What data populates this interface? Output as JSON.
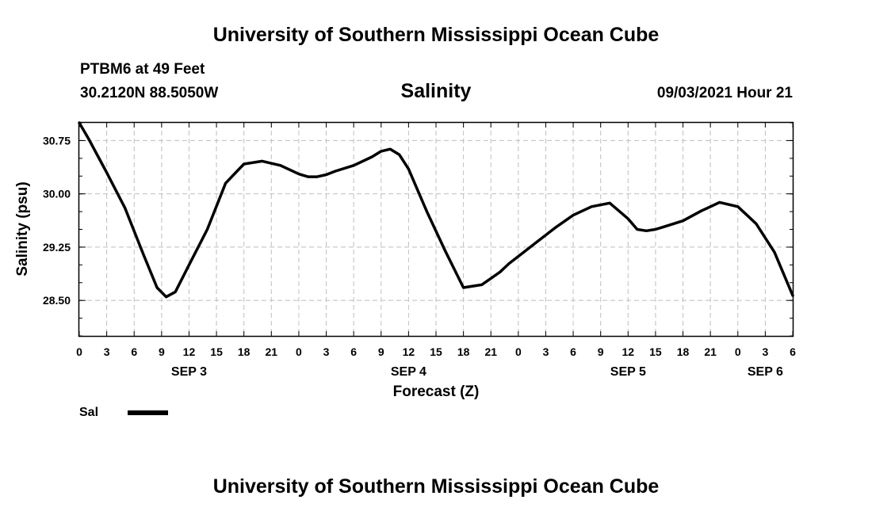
{
  "header": {
    "title": "University of Southern Mississippi Ocean Cube",
    "station": "PTBM6 at 49 Feet",
    "coords": "30.2120N  88.5050W",
    "chart_title": "Salinity",
    "timestamp": "09/03/2021 Hour 21"
  },
  "footer": {
    "title": "University of Southern Mississippi Ocean Cube"
  },
  "colors": {
    "grid": "#bfbfbf",
    "line": "#000000",
    "frame": "#000000"
  },
  "chart_data": {
    "type": "line",
    "title": "Salinity",
    "xlabel": "Forecast (Z)",
    "ylabel": "Salinity (psu)",
    "x_unit": "hours from Sep 3 00Z",
    "xlim": [
      0,
      78
    ],
    "ylim": [
      28.0,
      31.0
    ],
    "x_tick_values": [
      0,
      3,
      6,
      9,
      12,
      15,
      18,
      21,
      24,
      27,
      30,
      33,
      36,
      39,
      42,
      45,
      48,
      51,
      54,
      57,
      60,
      63,
      66,
      69,
      72,
      75,
      78
    ],
    "x_tick_labels": [
      "0",
      "3",
      "6",
      "9",
      "12",
      "15",
      "18",
      "21",
      "0",
      "3",
      "6",
      "9",
      "12",
      "15",
      "18",
      "21",
      "0",
      "3",
      "6",
      "9",
      "12",
      "15",
      "18",
      "21",
      "0",
      "3",
      "6"
    ],
    "date_labels": [
      {
        "x": 12,
        "label": "SEP 3"
      },
      {
        "x": 36,
        "label": "SEP 4"
      },
      {
        "x": 60,
        "label": "SEP 5"
      },
      {
        "x": 75,
        "label": "SEP 6"
      }
    ],
    "y_tick_values": [
      28.5,
      29.25,
      30.0,
      30.75
    ],
    "y_tick_labels": [
      "28.50",
      "29.25",
      "30.00",
      "30.75"
    ],
    "y_minor_step": 0.25,
    "grid": true,
    "series": [
      {
        "name": "Sal",
        "x": [
          0,
          1,
          3,
          5,
          7,
          8.5,
          9.5,
          10.5,
          12,
          14,
          16,
          18,
          20,
          22,
          24,
          25,
          26,
          27,
          28,
          30,
          32,
          33,
          34,
          35,
          36,
          37,
          38,
          40,
          42,
          44,
          46,
          47,
          48,
          50,
          52,
          54,
          56,
          58,
          60,
          61,
          62,
          63,
          64,
          66,
          68,
          70,
          72,
          74,
          76,
          78
        ],
        "y": [
          31.0,
          30.78,
          30.3,
          29.8,
          29.15,
          28.68,
          28.55,
          28.62,
          29.0,
          29.5,
          30.15,
          30.42,
          30.46,
          30.4,
          30.28,
          30.24,
          30.24,
          30.27,
          30.32,
          30.4,
          30.52,
          30.6,
          30.63,
          30.55,
          30.35,
          30.05,
          29.75,
          29.2,
          28.68,
          28.72,
          28.9,
          29.02,
          29.12,
          29.32,
          29.52,
          29.7,
          29.82,
          29.87,
          29.65,
          29.5,
          29.48,
          29.5,
          29.54,
          29.62,
          29.76,
          29.88,
          29.82,
          29.58,
          29.18,
          28.57
        ]
      }
    ],
    "legend": {
      "position": "bottom-left",
      "label": "Sal"
    }
  }
}
